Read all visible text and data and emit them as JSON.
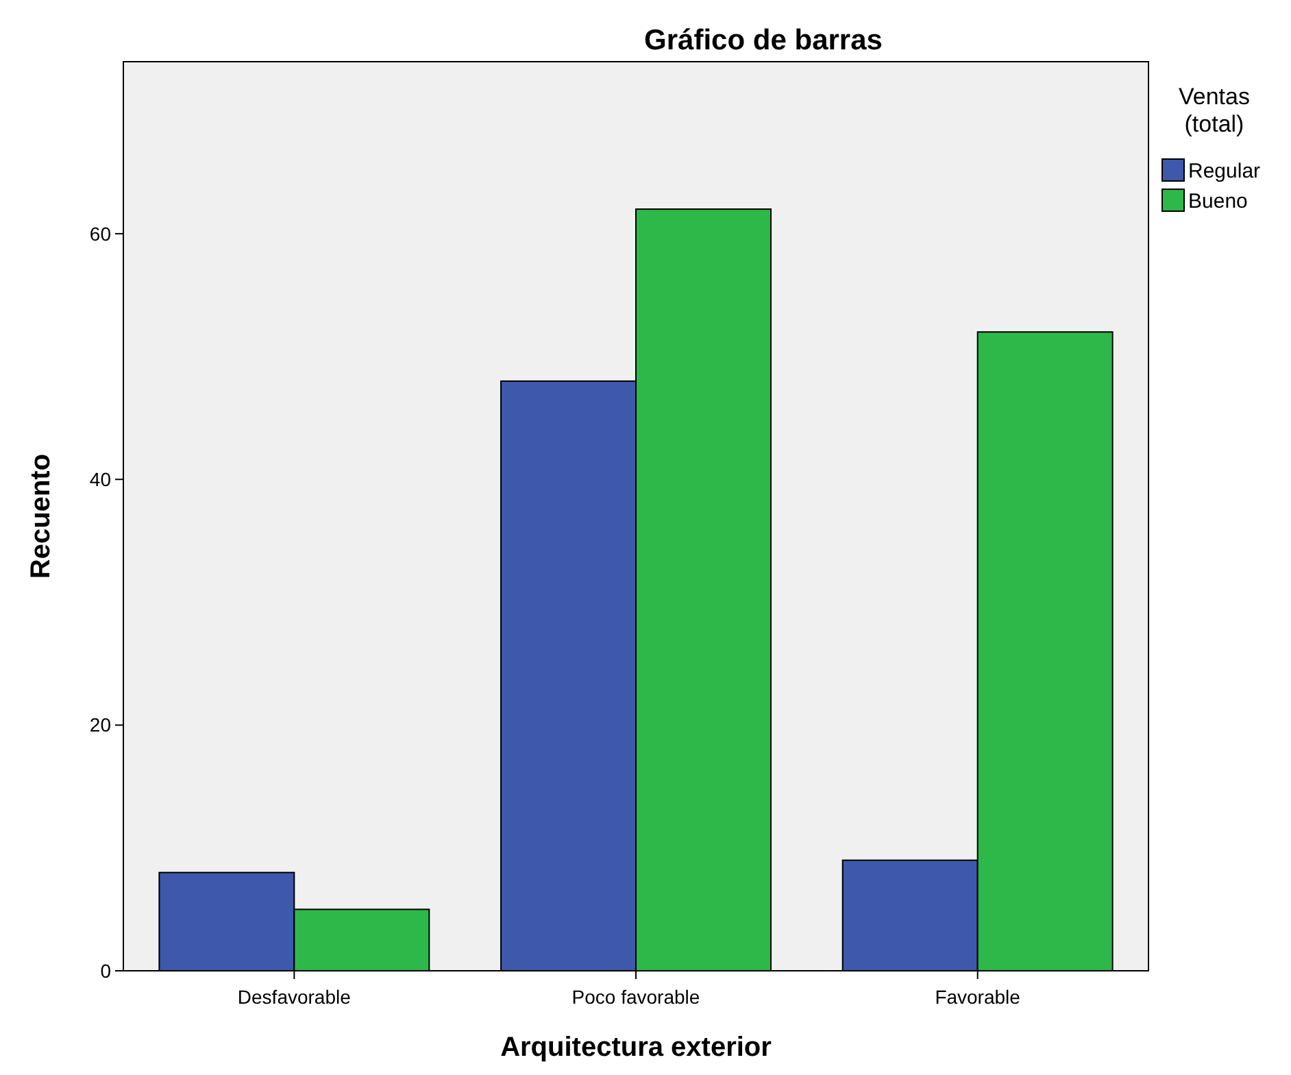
{
  "chart_data": {
    "type": "bar",
    "title": "Gráfico de barras",
    "xlabel": "Arquitectura exterior",
    "ylabel": "Recuento",
    "legend_title": "Ventas (total)",
    "categories": [
      "Desfavorable",
      "Poco favorable",
      "Favorable"
    ],
    "series": [
      {
        "name": "Regular",
        "color": "#3e58ac",
        "values": [
          8,
          48,
          9
        ]
      },
      {
        "name": "Bueno",
        "color": "#2eb84a",
        "values": [
          5,
          62,
          52
        ]
      }
    ],
    "ylim": [
      0,
      74
    ],
    "yticks": [
      0,
      20,
      40,
      60
    ],
    "grid": false,
    "legend": "top right"
  }
}
